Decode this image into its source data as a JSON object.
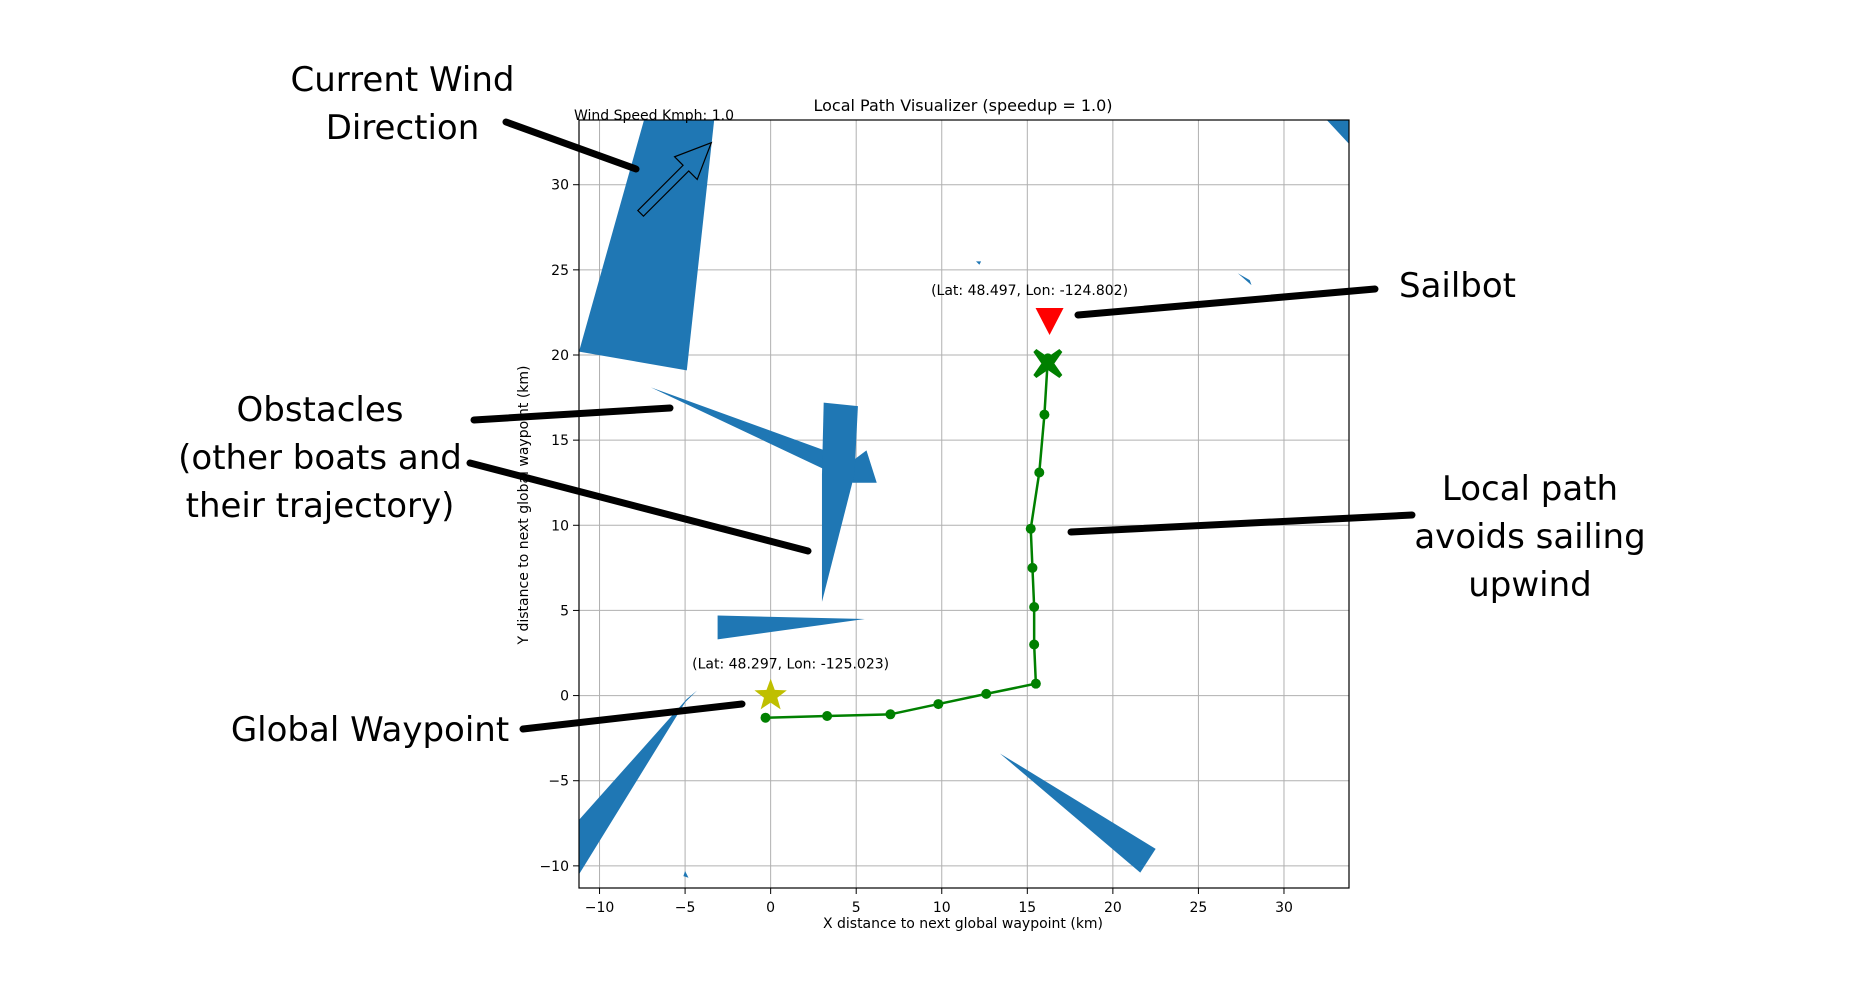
{
  "chart_data": {
    "type": "line",
    "title": "Local Path Visualizer (speedup = 1.0)",
    "xlabel": "X distance to next global waypoint (km)",
    "ylabel": "Y distance to next global waypoint (km)",
    "xlim": [
      -11.2,
      33.8
    ],
    "ylim": [
      -11.3,
      33.8
    ],
    "xticks": [
      -10,
      -5,
      0,
      5,
      10,
      15,
      20,
      25,
      30
    ],
    "yticks": [
      -10,
      -5,
      0,
      5,
      10,
      15,
      20,
      25,
      30
    ],
    "grid": true,
    "wind_speed_text": "Wind Speed Kmph: 1.0",
    "wind_direction_deg": 45,
    "local_path": {
      "color": "#008000",
      "points": [
        {
          "x": -0.3,
          "y": -1.3
        },
        {
          "x": 3.3,
          "y": -1.2
        },
        {
          "x": 7.0,
          "y": -1.1
        },
        {
          "x": 9.8,
          "y": -0.5
        },
        {
          "x": 12.6,
          "y": 0.1
        },
        {
          "x": 15.5,
          "y": 0.7
        },
        {
          "x": 15.4,
          "y": 3.0
        },
        {
          "x": 15.4,
          "y": 5.2
        },
        {
          "x": 15.3,
          "y": 7.5
        },
        {
          "x": 15.2,
          "y": 9.8
        },
        {
          "x": 15.7,
          "y": 13.1
        },
        {
          "x": 16.0,
          "y": 16.5
        },
        {
          "x": 16.2,
          "y": 19.8
        }
      ]
    },
    "global_waypoint": {
      "x": 0.0,
      "y": 0.0,
      "label": "(Lat: 48.297, Lon: -125.023)",
      "color": "#bfbf00"
    },
    "goal_marker": {
      "x": 16.2,
      "y": 19.5,
      "color": "#008000"
    },
    "sailbot": {
      "x": 16.3,
      "y": 22.0,
      "label": "(Lat: 48.497, Lon: -124.802)",
      "color": "#ff0000"
    },
    "obstacles": {
      "color": "#1f77b4",
      "polygons": [
        [
          [
            -7.4,
            33.8
          ],
          [
            -3.3,
            33.8
          ],
          [
            -4.9,
            19.1
          ],
          [
            -11.2,
            20.2
          ]
        ],
        [
          [
            -7.0,
            18.1
          ],
          [
            4.8,
            13.8
          ],
          [
            5.6,
            14.4
          ],
          [
            6.2,
            12.5
          ],
          [
            4.8,
            12.5
          ]
        ],
        [
          [
            3.1,
            17.2
          ],
          [
            5.1,
            17.0
          ],
          [
            4.9,
            13.0
          ],
          [
            3.0,
            5.5
          ],
          [
            3.0,
            13.0
          ]
        ],
        [
          [
            -3.1,
            4.7
          ],
          [
            5.5,
            4.5
          ],
          [
            -3.1,
            3.3
          ]
        ],
        [
          [
            -4.3,
            0.3
          ],
          [
            -4.9,
            -0.2
          ],
          [
            -11.2,
            -7.3
          ],
          [
            -11.2,
            -10.5
          ],
          [
            -5.0,
            -0.4
          ]
        ],
        [
          [
            13.4,
            -3.4
          ],
          [
            22.5,
            -9.0
          ],
          [
            21.6,
            -10.4
          ]
        ],
        [
          [
            32.5,
            33.8
          ],
          [
            33.8,
            33.8
          ],
          [
            33.8,
            32.4
          ]
        ],
        [
          [
            12.0,
            25.5
          ],
          [
            12.2,
            25.3
          ],
          [
            12.3,
            25.5
          ]
        ],
        [
          [
            27.3,
            24.8
          ],
          [
            28.0,
            24.4
          ],
          [
            28.1,
            24.1
          ]
        ],
        [
          [
            -5.1,
            -10.6
          ],
          [
            -5.0,
            -10.3
          ],
          [
            -4.8,
            -10.7
          ]
        ]
      ]
    }
  },
  "annotations": {
    "wind_direction": "Current Wind\nDirection",
    "sailbot": "Sailbot",
    "obstacles": "Obstacles\n(other boats and\ntheir trajectory)",
    "local_path": "Local path\navoids sailing\nupwind",
    "global_waypoint": "Global Waypoint"
  }
}
